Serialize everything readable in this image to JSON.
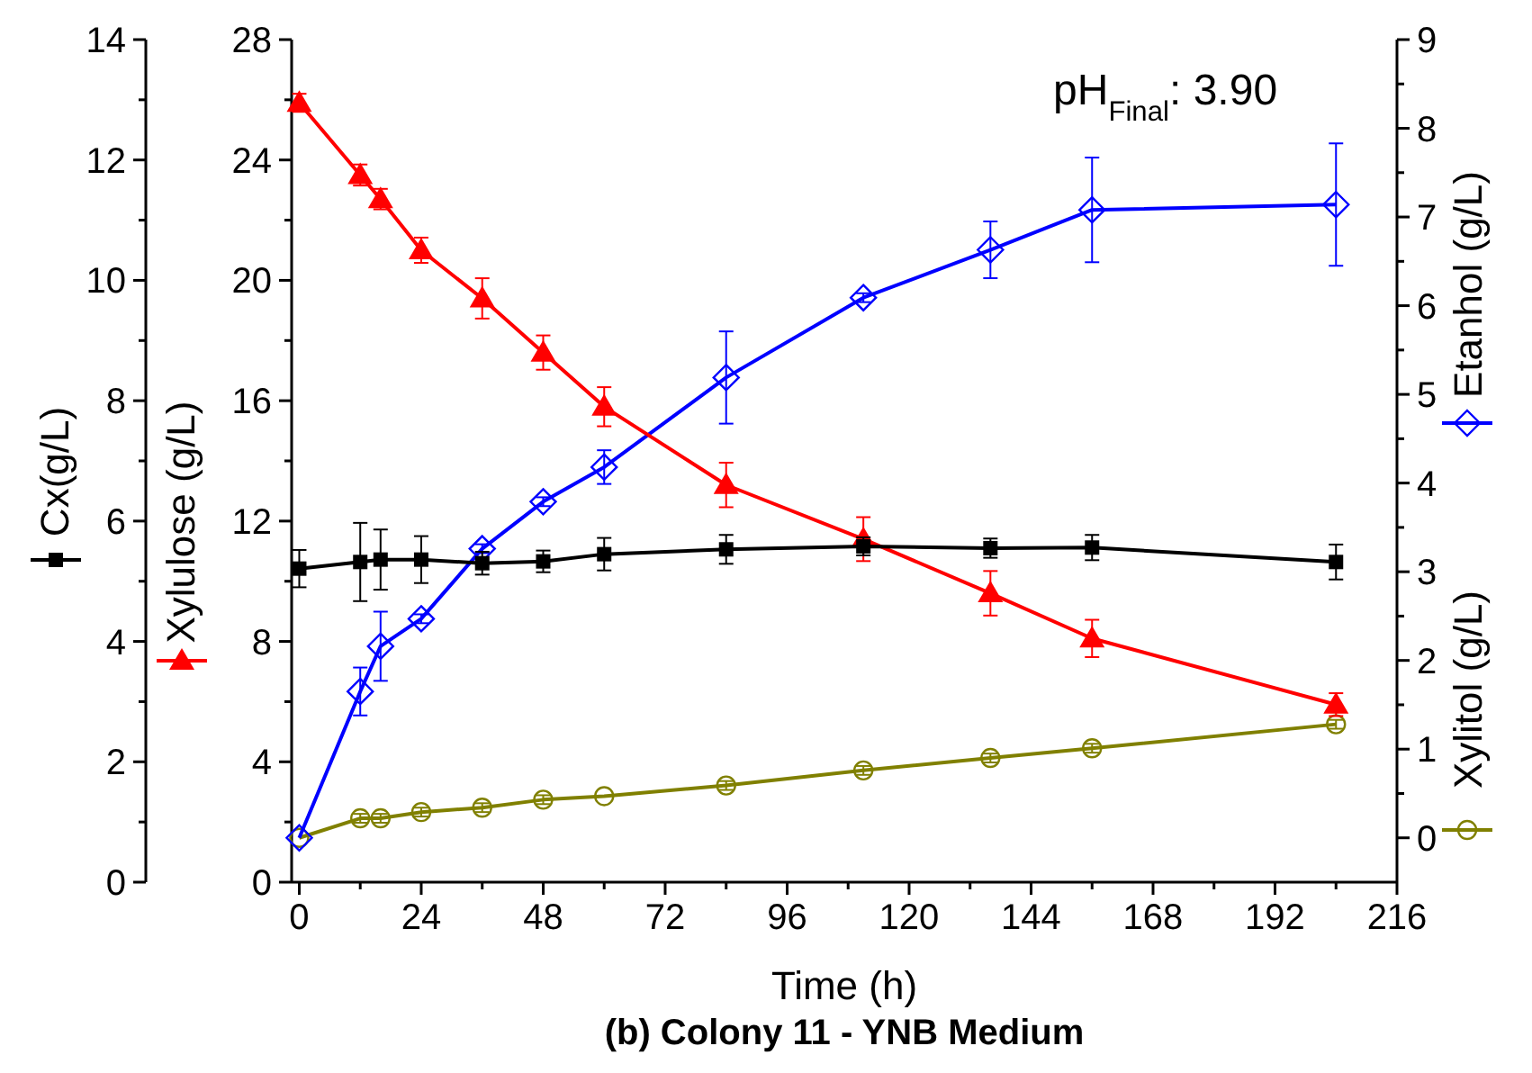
{
  "chart_data": {
    "type": "line",
    "title": "(b) Colony 11 - YNB Medium",
    "xlabel": "Time (h)",
    "ylabel": "Cx(g/L)",
    "y2label": "Xylulose (g/L)",
    "legend": "right",
    "annotations": [
      "pH$_{Final}$: 3.90"
    ],
    "x": [
      0,
      12,
      16,
      24,
      36,
      48,
      60,
      84,
      111,
      136,
      156,
      204
    ],
    "xlim": [
      -1.5,
      216
    ],
    "xticks": [
      0,
      {
        "value": 12,
        "label": null
      },
      24,
      {
        "value": 36,
        "label": null
      },
      48,
      {
        "value": 60,
        "label": null
      },
      72,
      {
        "value": 84,
        "label": null
      },
      96,
      {
        "value": 108,
        "label": null
      },
      120,
      {
        "value": 132,
        "label": null
      },
      144,
      {
        "value": 156,
        "label": null
      },
      168,
      {
        "value": 180,
        "label": null
      },
      192,
      {
        "value": 204,
        "label": null
      },
      216
    ],
    "ylim": [
      0,
      14
    ],
    "yticks": [
      0,
      {
        "value": 1,
        "label": null
      },
      2,
      {
        "value": 3,
        "label": null
      },
      4,
      {
        "value": 5,
        "label": null
      },
      6,
      {
        "value": 7,
        "label": null
      },
      8,
      {
        "value": 9,
        "label": null
      },
      10,
      {
        "value": 11,
        "label": null
      },
      12,
      {
        "value": 13,
        "label": null
      },
      14
    ],
    "y2lim": [
      0,
      28
    ],
    "y2ticks": [
      0,
      {
        "value": 2,
        "label": null
      },
      4,
      {
        "value": 6,
        "label": null
      },
      8,
      {
        "value": 10,
        "label": null
      },
      12,
      {
        "value": 14,
        "label": null
      },
      16,
      {
        "value": 18,
        "label": null
      },
      20,
      {
        "value": 22,
        "label": null
      },
      24,
      {
        "value": 26,
        "label": null
      },
      28
    ],
    "y3lim": [
      -0.5,
      9
    ],
    "y3ticks": [
      0,
      {
        "value": 0.5,
        "label": null
      },
      1,
      {
        "value": 1.5,
        "label": null
      },
      2,
      {
        "value": 2.5,
        "label": null
      },
      3,
      {
        "value": 3.5,
        "label": null
      },
      4,
      {
        "value": 4.5,
        "label": null
      },
      5,
      {
        "value": 5.5,
        "label": null
      },
      6,
      {
        "value": 6.5,
        "label": null
      },
      7,
      {
        "value": 7.5,
        "label": null
      },
      8,
      {
        "value": 8.5,
        "label": null
      },
      9
    ],
    "series": [
      {
        "color": "#000000",
        "axis": "y",
        "marker": "square",
        "values": [
          5.21,
          5.32,
          5.36,
          5.36,
          5.3,
          5.33,
          5.45,
          5.53,
          5.58,
          5.55,
          5.56,
          5.32
        ],
        "errors": [
          0.31,
          0.65,
          0.5,
          0.39,
          0.19,
          0.18,
          0.27,
          0.24,
          0.15,
          0.16,
          0.21,
          0.29
        ]
      },
      {
        "color": "#ff0000",
        "axis": "y2",
        "marker": "triangle",
        "values": [
          25.9,
          23.5,
          22.7,
          21.0,
          19.4,
          17.6,
          15.8,
          13.2,
          11.4,
          9.6,
          8.1,
          5.9
        ],
        "errors": [
          0.3,
          0.35,
          0.34,
          0.42,
          0.67,
          0.57,
          0.65,
          0.74,
          0.73,
          0.74,
          0.62,
          0.38
        ]
      },
      {
        "name": "Etanhol (g/L)",
        "color": "#0000ff",
        "axis": "y3",
        "marker": "diamond",
        "values": [
          0,
          1.65,
          2.16,
          2.47,
          3.26,
          3.79,
          4.18,
          5.19,
          6.09,
          6.63,
          7.08,
          7.14
        ],
        "errors": [
          null,
          0.27,
          0.39,
          0.05,
          0.05,
          0.05,
          0.19,
          0.52,
          0.05,
          0.32,
          0.59,
          0.69
        ]
      },
      {
        "name": "Xylitol (g/L)",
        "color": "#808000",
        "axis": "y3",
        "marker": "circle",
        "values": [
          0,
          0.22,
          0.22,
          0.29,
          0.34,
          0.43,
          0.47,
          0.59,
          0.76,
          0.9,
          1.01,
          1.28
        ],
        "errors": [
          null,
          0.05,
          0.05,
          0.05,
          0.05,
          0.05,
          null,
          0.05,
          0.05,
          0.05,
          0.05,
          0.05
        ]
      }
    ]
  }
}
